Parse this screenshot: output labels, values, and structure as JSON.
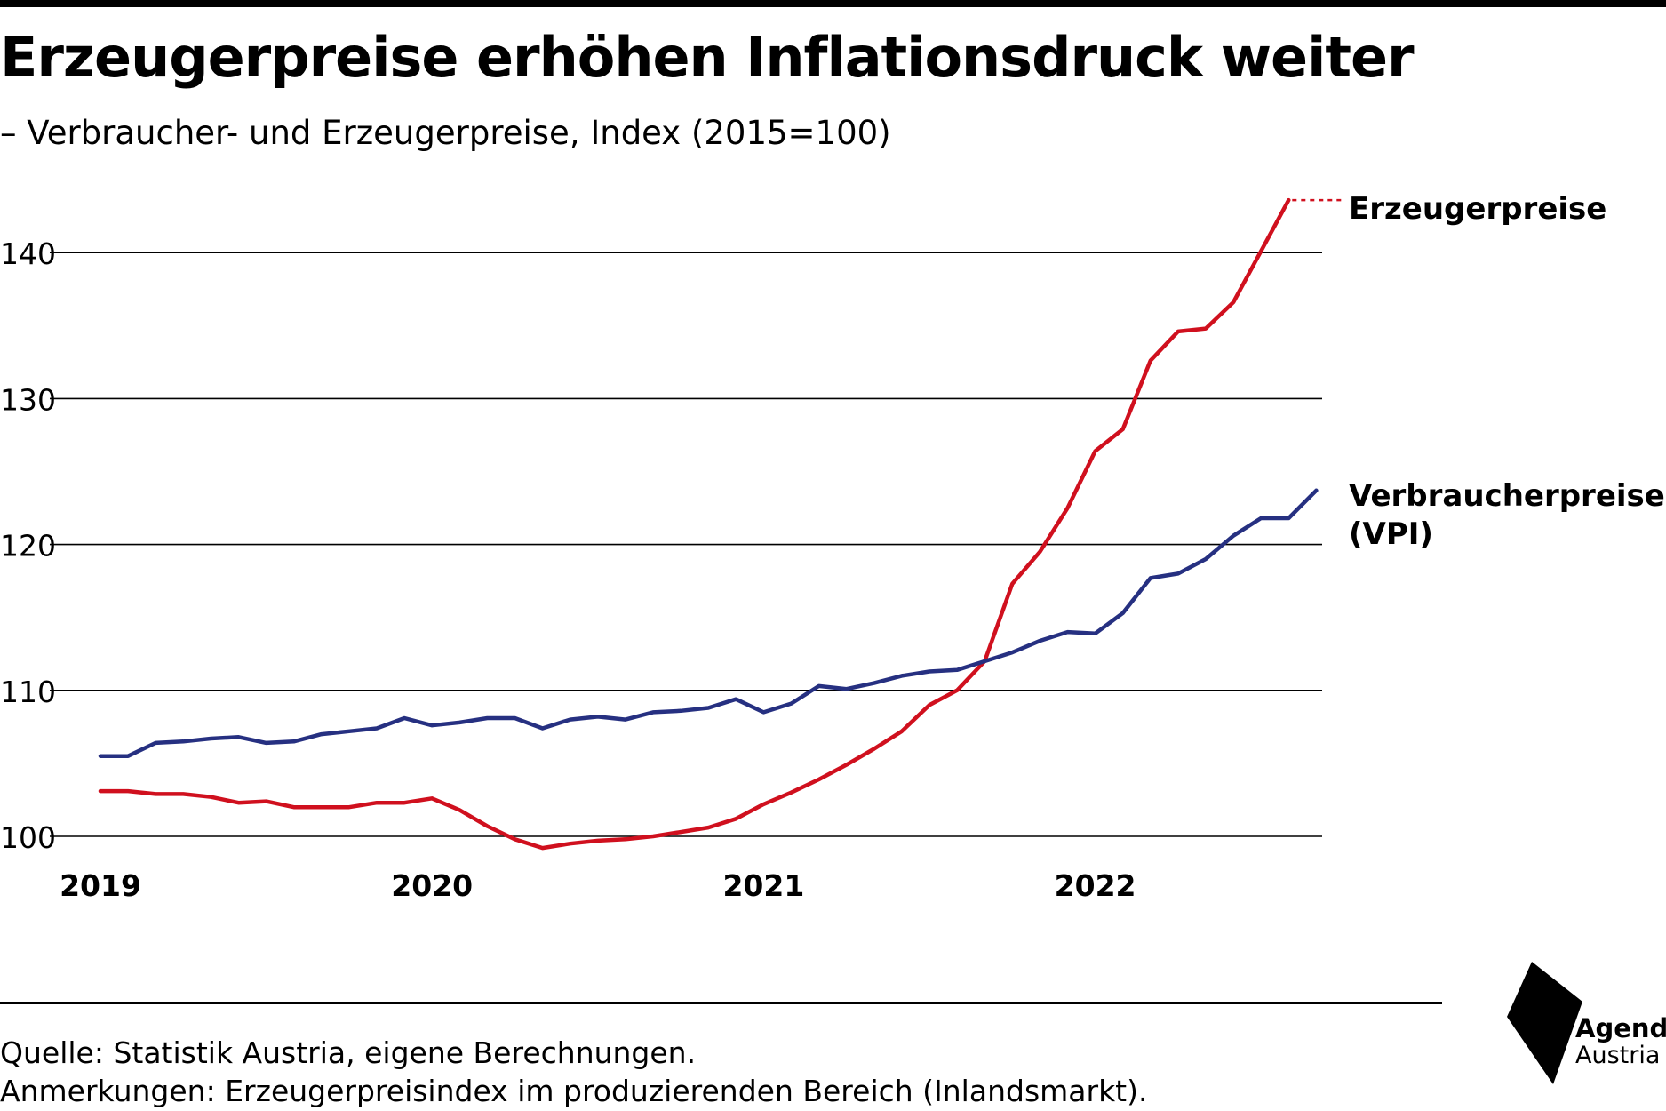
{
  "header": {
    "title": "Erzeugerpreise erhöhen Inflationsdruck weiter",
    "subtitle": "– Verbraucher- und Erzeugerpreise, Index (2015=100)"
  },
  "footer": {
    "source": "Quelle: Statistik Austria, eigene Berechnungen.",
    "note": "Anmerkungen: Erzeugerpreisindex im produzierenden Bereich (Inlandsmarkt)."
  },
  "logo": {
    "name": "Agenda",
    "sub": "Austria",
    "icon": "agenda-austria-logo-icon"
  },
  "chart_data": {
    "type": "line",
    "title": "Erzeugerpreise erhöhen Inflationsdruck weiter",
    "subtitle": "– Verbraucher- und Erzeugerpreise, Index (2015=100)",
    "x_start": "2019-01",
    "x_end": "2022-09",
    "x_ticks": [
      "2019",
      "2020",
      "2021",
      "2022"
    ],
    "y_ticks": [
      100,
      110,
      120,
      130,
      140
    ],
    "ylim": [
      100,
      140
    ],
    "grid": "horizontal",
    "legend": "direct labels at line ends (right)",
    "series": [
      {
        "name": "Erzeugerpreise",
        "color": "#d0101e",
        "last_dotted": true,
        "values": [
          103.1,
          103.1,
          102.9,
          102.9,
          102.7,
          102.3,
          102.4,
          102.0,
          102.0,
          102.0,
          102.3,
          102.3,
          102.6,
          101.8,
          100.7,
          99.8,
          99.2,
          99.5,
          99.7,
          99.8,
          100.0,
          100.3,
          100.6,
          101.2,
          102.2,
          103.0,
          103.9,
          104.9,
          106.0,
          107.2,
          109.0,
          110.0,
          112.0,
          117.3,
          119.5,
          122.5,
          126.4,
          127.9,
          132.6,
          134.6,
          134.8,
          136.6,
          140.1,
          143.6
        ]
      },
      {
        "name": "Verbraucherpreise (VPI)",
        "color": "#263081",
        "values": [
          105.5,
          105.5,
          106.4,
          106.5,
          106.7,
          106.8,
          106.4,
          106.5,
          107.0,
          107.2,
          107.4,
          108.1,
          107.6,
          107.8,
          108.1,
          108.1,
          107.4,
          108.0,
          108.2,
          108.0,
          108.5,
          108.6,
          108.8,
          109.4,
          108.5,
          109.1,
          110.3,
          110.1,
          110.5,
          111.0,
          111.3,
          111.4,
          112.0,
          112.6,
          113.4,
          114.0,
          113.9,
          115.3,
          117.7,
          118.0,
          119.0,
          120.6,
          121.8,
          121.8,
          123.7
        ]
      }
    ]
  }
}
